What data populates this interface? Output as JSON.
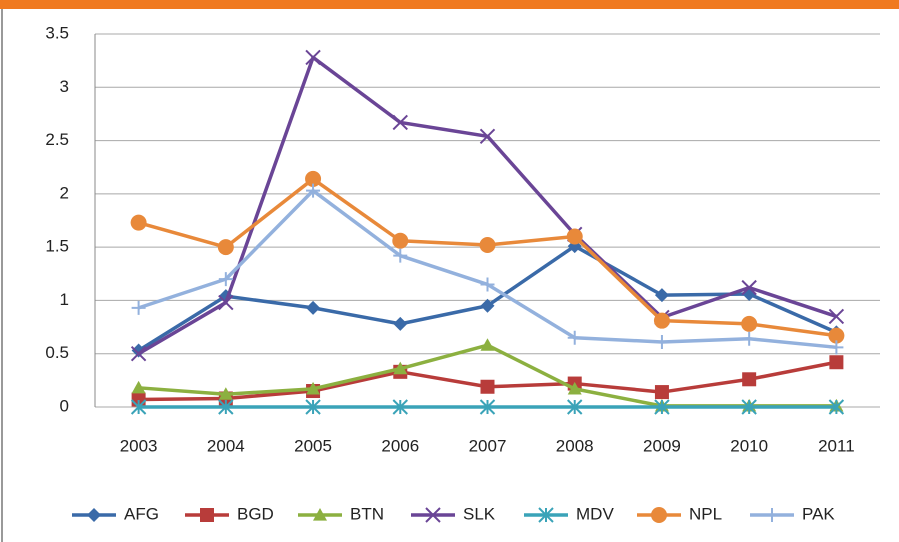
{
  "chart_data": {
    "type": "line",
    "categories": [
      "2003",
      "2004",
      "2005",
      "2006",
      "2007",
      "2008",
      "2009",
      "2010",
      "2011"
    ],
    "ylim": [
      0,
      3.5
    ],
    "yticks": [
      0,
      0.5,
      1,
      1.5,
      2,
      2.5,
      3,
      3.5
    ],
    "grid": true,
    "legend": "bottom",
    "series": [
      {
        "name": "AFG",
        "color": "#3a6aa8",
        "marker": "diamond",
        "values": [
          0.53,
          1.04,
          0.93,
          0.78,
          0.95,
          1.51,
          1.05,
          1.06,
          0.7
        ]
      },
      {
        "name": "BGD",
        "color": "#b83c3a",
        "marker": "square",
        "values": [
          0.07,
          0.08,
          0.15,
          0.33,
          0.19,
          0.22,
          0.14,
          0.26,
          0.42
        ]
      },
      {
        "name": "BTN",
        "color": "#8cb040",
        "marker": "triangle",
        "values": [
          0.18,
          0.12,
          0.17,
          0.36,
          0.58,
          0.17,
          0.01,
          0.01,
          0.01
        ]
      },
      {
        "name": "SLK",
        "color": "#6a4596",
        "marker": "x",
        "values": [
          0.5,
          0.98,
          3.28,
          2.67,
          2.54,
          1.62,
          0.84,
          1.12,
          0.85
        ]
      },
      {
        "name": "MDV",
        "color": "#3aa3b8",
        "marker": "asterisk",
        "values": [
          0,
          0,
          0,
          0,
          0,
          0,
          0,
          0,
          0
        ]
      },
      {
        "name": "NPL",
        "color": "#e8893a",
        "marker": "circle",
        "values": [
          1.73,
          1.5,
          2.14,
          1.56,
          1.52,
          1.6,
          0.81,
          0.78,
          0.67
        ]
      },
      {
        "name": "PAK",
        "color": "#93b1dd",
        "marker": "plus",
        "values": [
          0.93,
          1.2,
          2.03,
          1.42,
          1.15,
          0.65,
          0.61,
          0.64,
          0.56
        ]
      }
    ]
  }
}
